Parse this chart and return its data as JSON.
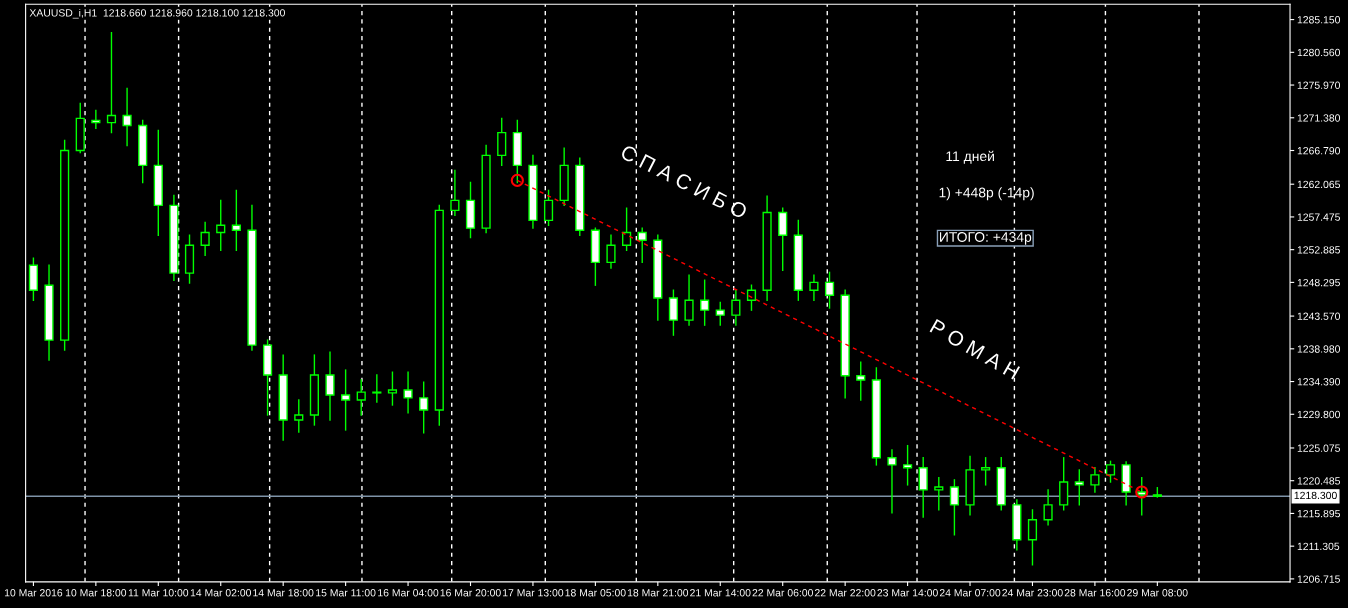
{
  "chart_data": {
    "type": "candlestick",
    "title": "XAUUSD_i,H1  1218.660 1218.960 1218.100 1218.300",
    "categories": [
      "10 Mar 2016",
      null,
      null,
      null,
      "10 Mar 18:00",
      null,
      null,
      null,
      "11 Mar 10:00",
      null,
      null,
      null,
      "14 Mar 02:00",
      null,
      null,
      null,
      "14 Mar 18:00",
      null,
      null,
      null,
      "15 Mar 11:00",
      null,
      null,
      null,
      "16 Mar 04:00",
      null,
      null,
      null,
      "16 Mar 20:00",
      null,
      null,
      null,
      "17 Mar 13:00",
      null,
      null,
      null,
      "18 Mar 05:00",
      null,
      null,
      null,
      "18 Mar 21:00",
      null,
      null,
      null,
      "21 Mar 14:00",
      null,
      null,
      null,
      "22 Mar 06:00",
      null,
      null,
      null,
      "22 Mar 22:00",
      null,
      null,
      null,
      "23 Mar 14:00",
      null,
      null,
      null,
      "24 Mar 07:00",
      null,
      null,
      null,
      "24 Mar 23:00",
      null,
      null,
      null,
      "28 Mar 16:00",
      null,
      null,
      null,
      "29 Mar 08:00",
      null,
      null,
      null,
      null,
      null,
      null,
      null,
      null
    ],
    "series": [
      {
        "color": "#00ff00",
        "colors": [
          "#ffffff",
          "#ffffff",
          "#000000",
          "#000000",
          "#ffffff",
          "#000000",
          "#ffffff",
          "#ffffff",
          "#ffffff",
          "#ffffff",
          "#000000",
          "#000000",
          "#000000",
          "#ffffff",
          "#ffffff",
          "#ffffff",
          "#ffffff",
          "#000000",
          "#000000",
          "#ffffff",
          "#ffffff",
          "#000000",
          "#ffffff",
          "#000000",
          "#ffffff",
          "#ffffff",
          "#000000",
          "#000000",
          "#ffffff",
          "#000000",
          "#000000",
          "#ffffff",
          "#ffffff",
          "#000000",
          "#000000",
          "#ffffff",
          "#ffffff",
          "#000000",
          "#000000",
          "#ffffff",
          "#ffffff",
          "#ffffff",
          "#000000",
          "#ffffff",
          "#ffffff",
          "#000000",
          "#000000",
          "#000000",
          "#ffffff",
          "#ffffff",
          "#000000",
          "#ffffff",
          "#ffffff",
          "#ffffff",
          "#ffffff",
          "#ffffff",
          "#ffffff",
          "#ffffff",
          "#000000",
          "#ffffff",
          "#000000",
          "#000000",
          "#ffffff",
          "#ffffff",
          "#000000",
          "#000000",
          "#000000",
          "#ffffff",
          "#000000",
          "#000000",
          "#ffffff",
          "#ffffff",
          "#ffffff",
          null,
          null,
          null,
          null,
          null,
          null,
          null,
          null
        ],
        "ohlc": [
          [
            1250.7,
            1251.7,
            1245.8,
            1247.2
          ],
          [
            1247.9,
            1250.7,
            1237.4,
            1240.2
          ],
          [
            1240.2,
            1268.2,
            1238.8,
            1266.8
          ],
          [
            1266.8,
            1273.4,
            1266.5,
            1271.3
          ],
          [
            1271.0,
            1272.4,
            1269.9,
            1270.7
          ],
          [
            1270.7,
            1283.3,
            1269.3,
            1271.7
          ],
          [
            1271.7,
            1275.5,
            1267.5,
            1270.3
          ],
          [
            1270.3,
            1271.0,
            1262.3,
            1264.7
          ],
          [
            1264.7,
            1269.6,
            1254.9,
            1259.1
          ],
          [
            1259.1,
            1260.5,
            1248.6,
            1249.6
          ],
          [
            1249.6,
            1254.9,
            1248.2,
            1253.5
          ],
          [
            1253.5,
            1256.7,
            1252.1,
            1255.3
          ],
          [
            1255.3,
            1259.8,
            1252.8,
            1256.3
          ],
          [
            1256.3,
            1261.2,
            1252.8,
            1255.6
          ],
          [
            1255.6,
            1259.1,
            1238.8,
            1239.5
          ],
          [
            1239.5,
            1240.2,
            1229.7,
            1235.3
          ],
          [
            1235.3,
            1238.1,
            1226.2,
            1229.0
          ],
          [
            1229.0,
            1231.8,
            1227.3,
            1229.7
          ],
          [
            1229.7,
            1238.1,
            1228.3,
            1235.3
          ],
          [
            1235.3,
            1238.5,
            1229.0,
            1232.5
          ],
          [
            1232.5,
            1236.0,
            1227.6,
            1231.8
          ],
          [
            1231.8,
            1234.6,
            1229.7,
            1232.9
          ],
          [
            1232.9,
            1235.3,
            1231.5,
            1232.8
          ],
          [
            1232.8,
            1235.7,
            1231.1,
            1233.2
          ],
          [
            1233.2,
            1235.7,
            1230.0,
            1232.1
          ],
          [
            1232.1,
            1234.3,
            1227.2,
            1230.4
          ],
          [
            1230.4,
            1259.1,
            1228.3,
            1258.4
          ],
          [
            1258.4,
            1264.0,
            1257.7,
            1259.8
          ],
          [
            1259.8,
            1262.3,
            1254.6,
            1255.9
          ],
          [
            1255.9,
            1267.5,
            1255.3,
            1266.1
          ],
          [
            1266.1,
            1271.3,
            1264.7,
            1269.3
          ],
          [
            1269.3,
            1271.0,
            1262.3,
            1264.7
          ],
          [
            1264.7,
            1266.1,
            1255.9,
            1257.0
          ],
          [
            1257.0,
            1261.2,
            1256.3,
            1259.8
          ],
          [
            1259.8,
            1267.1,
            1259.1,
            1264.7
          ],
          [
            1264.7,
            1265.7,
            1254.9,
            1255.6
          ],
          [
            1255.6,
            1255.9,
            1247.9,
            1251.1
          ],
          [
            1251.1,
            1254.9,
            1250.3,
            1253.5
          ],
          [
            1253.5,
            1258.7,
            1252.8,
            1255.3
          ],
          [
            1255.3,
            1255.9,
            1251.1,
            1254.2
          ],
          [
            1254.2,
            1254.9,
            1243.0,
            1246.1
          ],
          [
            1246.1,
            1247.2,
            1240.9,
            1243.0
          ],
          [
            1243.0,
            1249.3,
            1242.3,
            1245.8
          ],
          [
            1245.8,
            1248.6,
            1242.3,
            1244.4
          ],
          [
            1244.4,
            1245.5,
            1242.3,
            1243.7
          ],
          [
            1243.7,
            1247.2,
            1242.3,
            1245.8
          ],
          [
            1245.8,
            1247.9,
            1244.4,
            1247.2
          ],
          [
            1247.2,
            1260.4,
            1245.8,
            1258.1
          ],
          [
            1258.1,
            1258.7,
            1250.0,
            1254.9
          ],
          [
            1254.9,
            1257.0,
            1245.8,
            1247.2
          ],
          [
            1247.2,
            1249.3,
            1245.8,
            1248.3
          ],
          [
            1248.3,
            1249.7,
            1244.7,
            1246.5
          ],
          [
            1246.5,
            1247.2,
            1232.1,
            1235.2
          ],
          [
            1235.2,
            1237.1,
            1231.8,
            1234.6
          ],
          [
            1234.6,
            1236.3,
            1222.7,
            1223.7
          ],
          [
            1223.7,
            1224.8,
            1216.0,
            1222.7
          ],
          [
            1222.7,
            1225.4,
            1219.9,
            1222.3
          ],
          [
            1222.3,
            1223.7,
            1215.4,
            1219.2
          ],
          [
            1219.2,
            1220.9,
            1216.4,
            1219.6
          ],
          [
            1219.6,
            1220.6,
            1212.9,
            1217.1
          ],
          [
            1217.1,
            1223.9,
            1215.7,
            1222.0
          ],
          [
            1222.0,
            1223.7,
            1219.9,
            1222.3
          ],
          [
            1222.3,
            1223.7,
            1216.4,
            1217.1
          ],
          [
            1217.1,
            1217.8,
            1210.8,
            1212.2
          ],
          [
            1212.2,
            1216.4,
            1208.7,
            1215.0
          ],
          [
            1215.0,
            1219.2,
            1214.3,
            1217.1
          ],
          [
            1217.1,
            1223.7,
            1216.4,
            1220.3
          ],
          [
            1220.3,
            1222.0,
            1217.1,
            1219.9
          ],
          [
            1219.9,
            1222.3,
            1218.9,
            1221.3
          ],
          [
            1221.3,
            1223.2,
            1220.3,
            1222.7
          ],
          [
            1222.7,
            1223.1,
            1217.1,
            1218.9
          ],
          [
            1218.9,
            1220.9,
            1215.7,
            1218.5
          ],
          [
            1218.5,
            1219.5,
            1218.2,
            1218.3
          ],
          null,
          null,
          null,
          null,
          null,
          null,
          null,
          null
        ]
      },
      {
        "type": "line",
        "color": "#ff0000",
        "line_style": "dashed",
        "marker": "circle",
        "values": [
          null,
          null,
          null,
          null,
          null,
          null,
          null,
          null,
          null,
          null,
          null,
          null,
          null,
          null,
          null,
          null,
          null,
          null,
          null,
          null,
          null,
          null,
          null,
          null,
          null,
          null,
          null,
          null,
          null,
          null,
          null,
          1262.6,
          null,
          null,
          null,
          null,
          null,
          null,
          null,
          null,
          null,
          null,
          null,
          null,
          null,
          null,
          null,
          null,
          null,
          null,
          null,
          null,
          null,
          null,
          null,
          null,
          null,
          null,
          null,
          null,
          null,
          null,
          null,
          null,
          null,
          null,
          null,
          null,
          null,
          null,
          null,
          1218.9,
          null,
          null,
          null,
          null,
          null,
          null,
          null,
          null,
          null
        ]
      }
    ],
    "ylim": [
      1206.3,
      1287.3
    ],
    "yticks": [
      {
        "value": 1285.15,
        "label": "1285.150"
      },
      {
        "value": 1280.56,
        "label": "1280.560"
      },
      {
        "value": 1275.97,
        "label": "1275.970"
      },
      {
        "value": 1271.38,
        "label": "1271.380"
      },
      {
        "value": 1266.79,
        "label": "1266.790"
      },
      {
        "value": 1262.065,
        "label": "1262.065"
      },
      {
        "value": 1257.475,
        "label": "1257.475"
      },
      {
        "value": 1252.885,
        "label": "1252.885"
      },
      {
        "value": 1248.295,
        "label": "1248.295"
      },
      {
        "value": 1243.57,
        "label": "1243.570"
      },
      {
        "value": 1238.98,
        "label": "1238.980"
      },
      {
        "value": 1234.39,
        "label": "1234.390"
      },
      {
        "value": 1229.8,
        "label": "1229.800"
      },
      {
        "value": 1225.075,
        "label": "1225.075"
      },
      {
        "value": 1220.485,
        "label": "1220.485"
      },
      {
        "value": 1215.895,
        "label": "1215.895"
      },
      {
        "value": 1211.305,
        "label": "1211.305"
      },
      {
        "value": 1206.715,
        "label": "1206.715"
      }
    ],
    "ref_lines": [
      {
        "axis": "y",
        "value": 1218.3,
        "label": "1218.300",
        "color": "#7f93a8",
        "line_style": "solid"
      }
    ],
    "annotations": [
      "С П А С И Б О",
      "Р О М А Н",
      "11 дней",
      "1) +448р (-14р)",
      "ИТОГО: +434р"
    ],
    "grid": "x",
    "legend": false
  }
}
